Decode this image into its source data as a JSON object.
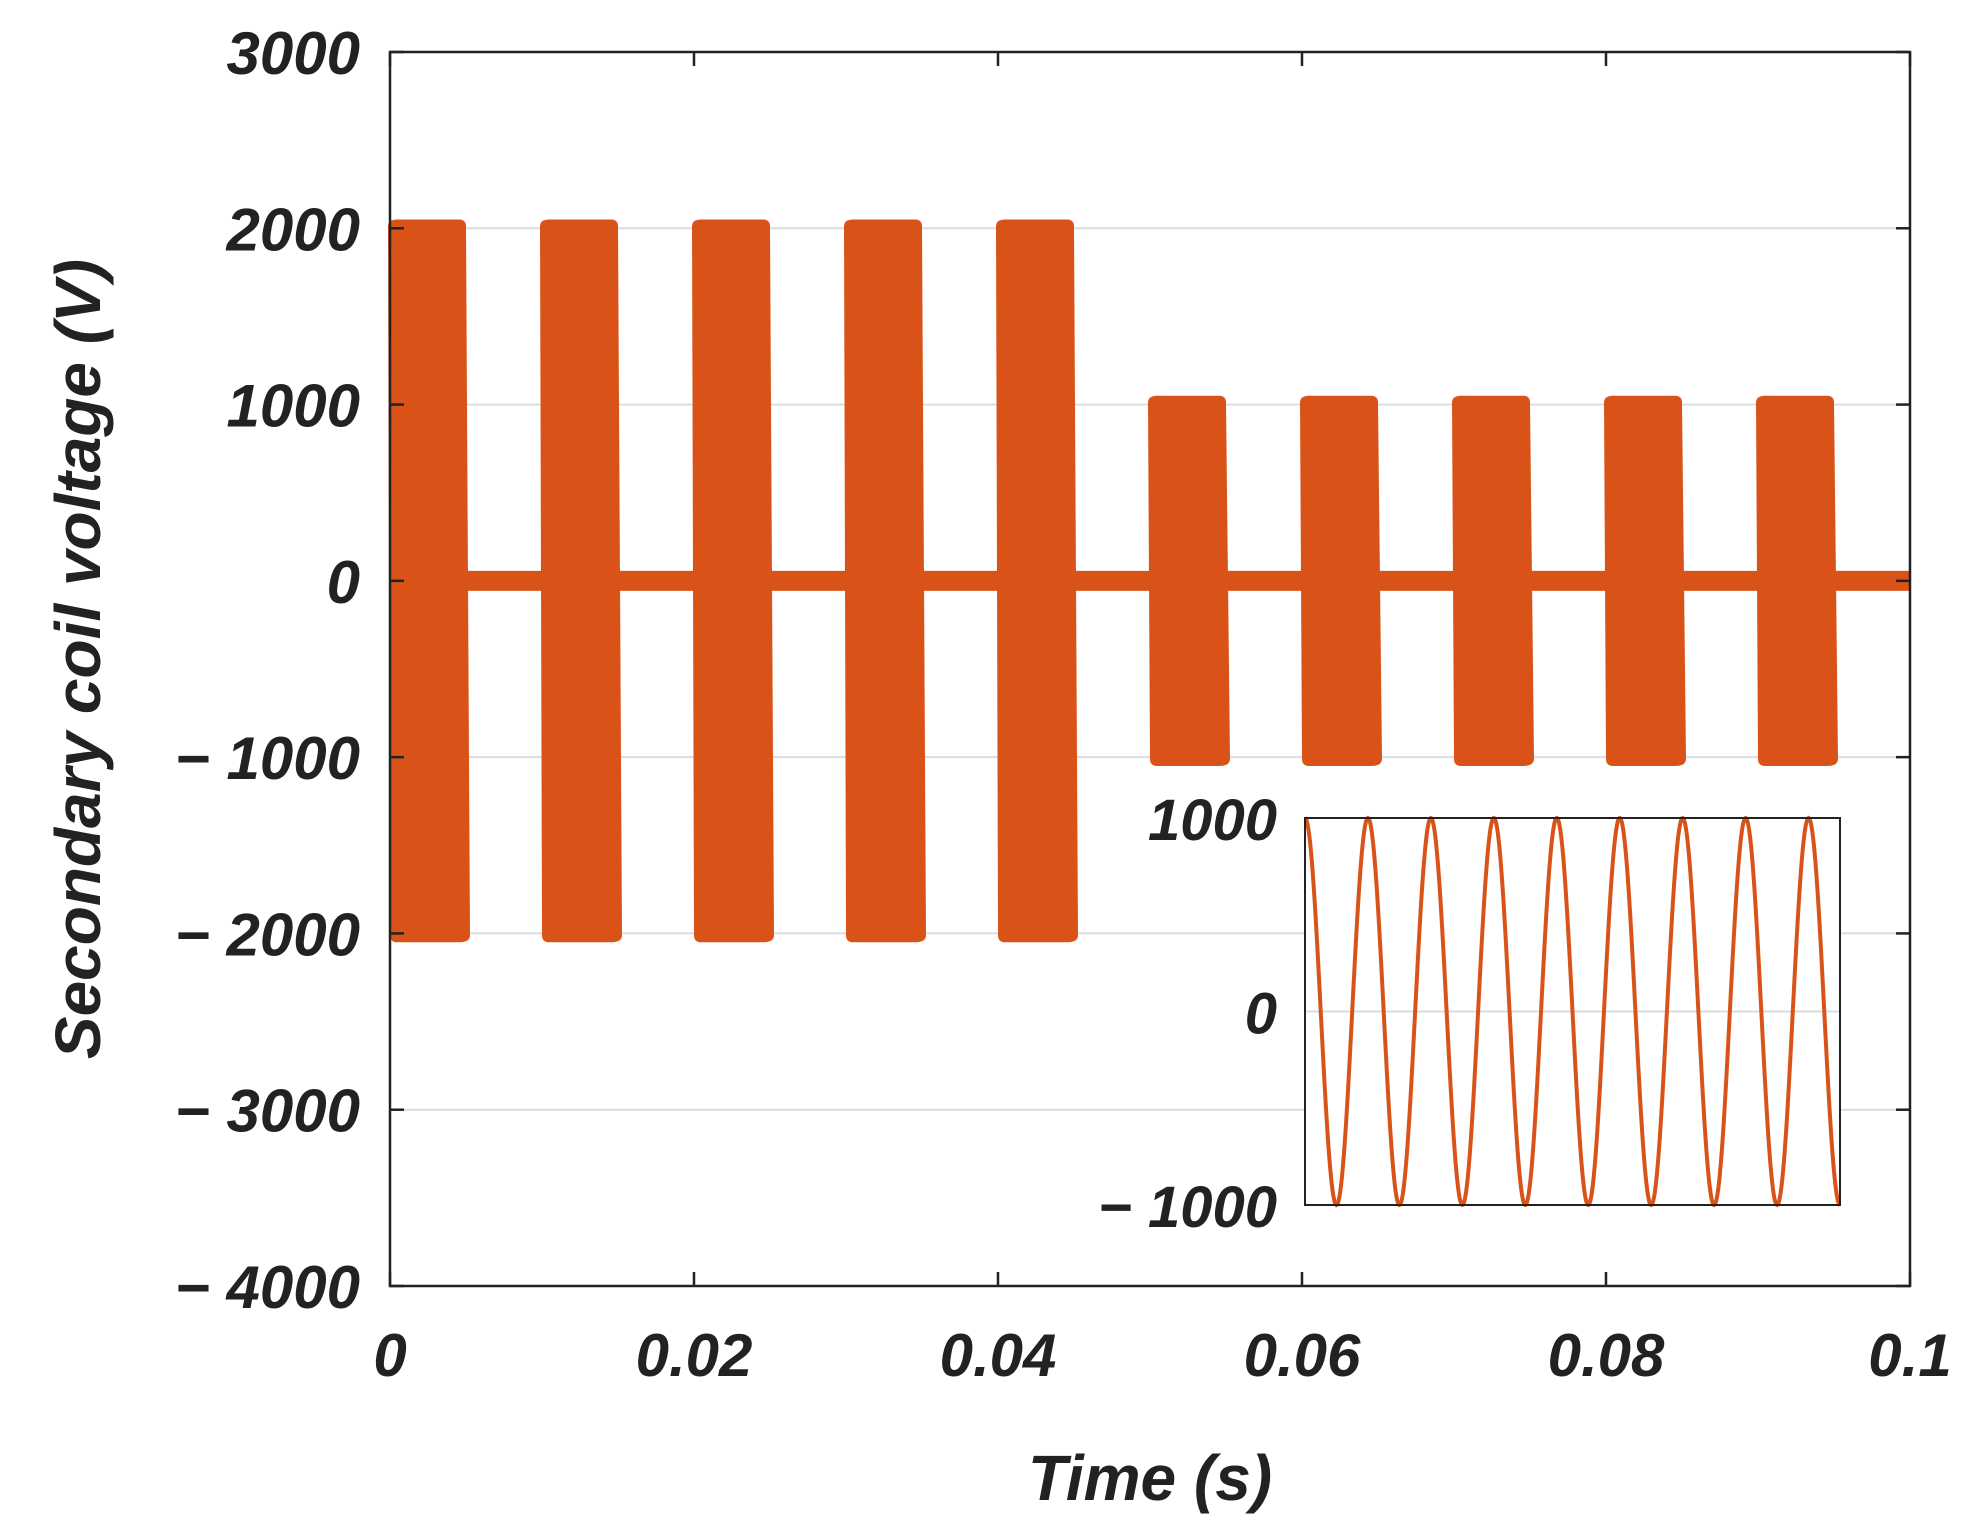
{
  "chart_data": [
    {
      "type": "line",
      "role": "main",
      "xlabel": "Time (s)",
      "ylabel": "Secondary coil voltage (V)",
      "xlim": [
        0,
        0.1
      ],
      "ylim": [
        -4000,
        3000
      ],
      "xticks": [
        0,
        0.02,
        0.04,
        0.06,
        0.08,
        0.1
      ],
      "xtick_labels": [
        "0",
        "0.02",
        "0.04",
        "0.06",
        "0.08",
        "0.1"
      ],
      "yticks": [
        -4000,
        -3000,
        -2000,
        -1000,
        0,
        1000,
        2000,
        3000
      ],
      "ytick_labels": [
        "− 4000",
        "− 3000",
        "− 2000",
        "− 1000",
        "0",
        "1000",
        "2000",
        "3000"
      ],
      "grid": true,
      "color": "#D95319",
      "bursts": [
        {
          "start": 0.0,
          "end": 0.005,
          "amplitude": 2050
        },
        {
          "start": 0.01,
          "end": 0.015,
          "amplitude": 2050
        },
        {
          "start": 0.02,
          "end": 0.025,
          "amplitude": 2050
        },
        {
          "start": 0.03,
          "end": 0.035,
          "amplitude": 2050
        },
        {
          "start": 0.04,
          "end": 0.045,
          "amplitude": 2050
        },
        {
          "start": 0.05,
          "end": 0.055,
          "amplitude": 1050
        },
        {
          "start": 0.06,
          "end": 0.065,
          "amplitude": 1050
        },
        {
          "start": 0.07,
          "end": 0.075,
          "amplitude": 1050
        },
        {
          "start": 0.08,
          "end": 0.085,
          "amplitude": 1050
        },
        {
          "start": 0.09,
          "end": 0.095,
          "amplitude": 1050
        }
      ],
      "baseline": 0
    },
    {
      "type": "line",
      "role": "inset",
      "ylim": [
        -1000,
        1000
      ],
      "yticks": [
        -1000,
        0,
        1000
      ],
      "ytick_labels": [
        "− 1000",
        "0",
        "1000"
      ],
      "cycles": 8.5,
      "amplitude": 1000,
      "color": "#D95319"
    }
  ]
}
